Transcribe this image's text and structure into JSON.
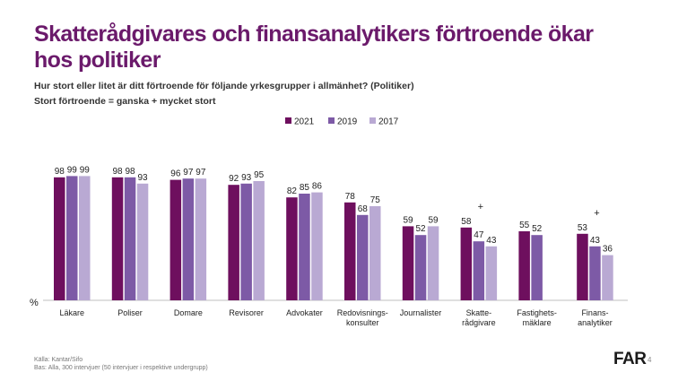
{
  "title": "Skatterådgivares och finansanalytikers förtroende ökar hos politiker",
  "subtitle": "Hur stort eller litet är ditt förtroende för följande yrkesgrupper i allmänhet? (Politiker)",
  "subtitle2": "Stort förtroende = ganska + mycket stort",
  "footer": {
    "source": "Källa: Kantar/Sifo",
    "base": "Bas: Alla, 300 intervjuer (50 intervjuer i respektive undergrupp)"
  },
  "logo_text": "FAR",
  "page_number": "4",
  "chart_data": {
    "type": "bar",
    "ylabel": "%",
    "ylim": [
      0,
      100
    ],
    "categories": [
      [
        "Läkare"
      ],
      [
        "Poliser"
      ],
      [
        "Domare"
      ],
      [
        "Revisorer"
      ],
      [
        "Advokater"
      ],
      [
        "Redovisnings-",
        "konsulter"
      ],
      [
        "Journalister"
      ],
      [
        "Skatte-",
        "rådgivare"
      ],
      [
        "Fastighets-",
        "mäklare"
      ],
      [
        "Finans-",
        "analytiker"
      ]
    ],
    "series": [
      {
        "name": "2021",
        "color": "#6e0f5e",
        "values": [
          98,
          98,
          96,
          92,
          82,
          78,
          59,
          58,
          55,
          53
        ]
      },
      {
        "name": "2019",
        "color": "#7d5aa6",
        "values": [
          99,
          98,
          97,
          93,
          85,
          68,
          52,
          47,
          52,
          43
        ]
      },
      {
        "name": "2017",
        "color": "#b9a9d3",
        "values": [
          99,
          93,
          97,
          95,
          86,
          75,
          59,
          43,
          null,
          36
        ]
      }
    ],
    "annotations": [
      {
        "category_index": 7,
        "text": "+"
      },
      {
        "category_index": 9,
        "text": "+"
      }
    ]
  }
}
